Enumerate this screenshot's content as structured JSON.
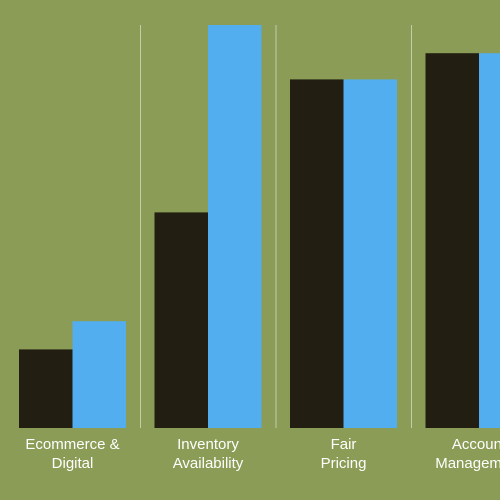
{
  "colors": {
    "background": "#8a9c55",
    "series_dark": "#231e12",
    "series_light": "#52aeee",
    "divider": "#d9dcc6",
    "label_text": "#ffffff"
  },
  "chart_data": {
    "type": "bar",
    "title": "",
    "xlabel": "",
    "ylabel": "",
    "ylim": [
      0,
      100
    ],
    "grid": false,
    "legend": "none",
    "categories": [
      [
        "Ecommerce &",
        "Digital"
      ],
      [
        "Inventory",
        "Availability"
      ],
      [
        "Fair",
        "Pricing"
      ],
      [
        "Account",
        "Management"
      ]
    ],
    "series": [
      {
        "color": "#231e12",
        "values": [
          19.5,
          53.5,
          86.5,
          93
        ]
      },
      {
        "color": "#52aeee",
        "values": [
          26.5,
          100,
          86.5,
          93
        ]
      }
    ]
  }
}
